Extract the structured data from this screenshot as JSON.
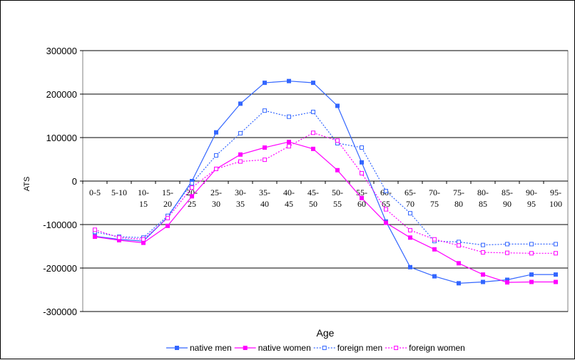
{
  "chart_data": {
    "type": "line",
    "title": "",
    "xlabel": "Age",
    "ylabel": "ATS",
    "ylim": [
      -300000,
      300000
    ],
    "yticks": [
      300000,
      200000,
      100000,
      0,
      -100000,
      -200000,
      -300000
    ],
    "ytick_labels": [
      "300000",
      "200000",
      "100000",
      "0",
      "-100000",
      "-200000",
      "-300000"
    ],
    "grid": "horizontal",
    "legend_position": "bottom",
    "categories": [
      "0-5",
      "5-10",
      "10-15",
      "15-20",
      "20-25",
      "25-30",
      "30-35",
      "35-40",
      "40-45",
      "45-50",
      "50-55",
      "55-60",
      "60-65",
      "65-70",
      "70-75",
      "75-80",
      "80-85",
      "85-90",
      "90-95",
      "95-100"
    ],
    "series": [
      {
        "name": "native men",
        "color": "#3366ff",
        "dash": "solid",
        "marker": "filled-square",
        "values": [
          -127000,
          -134000,
          -138000,
          -83000,
          0,
          112000,
          178000,
          226000,
          230000,
          226000,
          173000,
          43000,
          -93000,
          -198000,
          -219000,
          -235000,
          -232000,
          -227000,
          -215000,
          -215000
        ]
      },
      {
        "name": "native women",
        "color": "#ff00ff",
        "dash": "solid",
        "marker": "filled-square",
        "values": [
          -128000,
          -136000,
          -142000,
          -103000,
          -35000,
          28000,
          61000,
          77000,
          90000,
          74000,
          25000,
          -39000,
          -96000,
          -130000,
          -157000,
          -189000,
          -215000,
          -233000,
          -232000,
          -232000
        ]
      },
      {
        "name": "foreign men",
        "color": "#3366ff",
        "dash": "dotted",
        "marker": "open-square",
        "values": [
          -117000,
          -128000,
          -130000,
          -80000,
          -5000,
          59000,
          110000,
          162000,
          148000,
          159000,
          87000,
          77000,
          -23000,
          -74000,
          -138000,
          -140000,
          -147000,
          -145000,
          -145000,
          -145000
        ]
      },
      {
        "name": "foreign women",
        "color": "#ff00ff",
        "dash": "dotted",
        "marker": "open-square",
        "values": [
          -112000,
          -130000,
          -134000,
          -85000,
          -15000,
          28000,
          45000,
          49000,
          80000,
          111000,
          93000,
          18000,
          -65000,
          -113000,
          -134000,
          -148000,
          -164000,
          -165000,
          -166000,
          -166000
        ]
      }
    ]
  }
}
